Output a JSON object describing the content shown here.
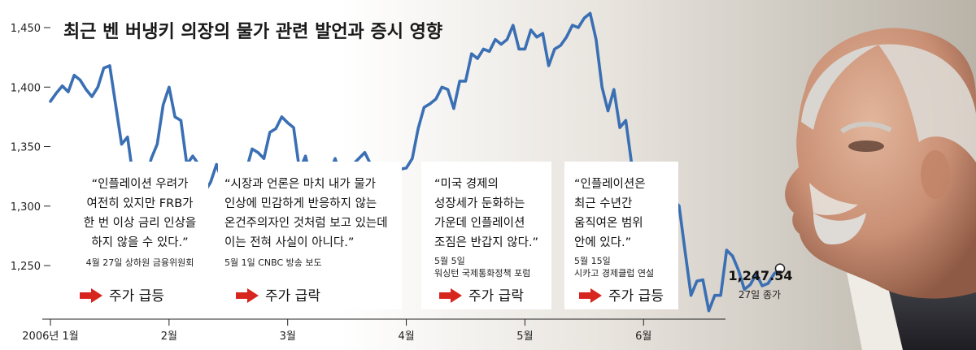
{
  "chart_data": {
    "type": "line",
    "title": "최근 벤 버냉키 의장의 물가 관련 발언과 증시 영향",
    "ylim": [
      1205,
      1465
    ],
    "yticks": [
      1250,
      1300,
      1350,
      1400,
      1450
    ],
    "ytick_labels": [
      "1,250",
      "1,300",
      "1,350",
      "1,400",
      "1,450"
    ],
    "xticks": [
      {
        "label": "2006년 1월",
        "index": 0
      },
      {
        "label": "2월",
        "index": 20
      },
      {
        "label": "3월",
        "index": 40
      },
      {
        "label": "4월",
        "index": 60
      },
      {
        "label": "5월",
        "index": 80
      },
      {
        "label": "6월",
        "index": 100
      }
    ],
    "series": [
      {
        "values": [
          1388,
          1395,
          1401,
          1396,
          1410,
          1406,
          1398,
          1392,
          1400,
          1416,
          1418,
          1385,
          1352,
          1358,
          1322,
          1300,
          1320,
          1340,
          1352,
          1385,
          1400,
          1375,
          1372,
          1335,
          1342,
          1335,
          1312,
          1320,
          1335,
          1320,
          1330,
          1305,
          1312,
          1330,
          1348,
          1345,
          1340,
          1362,
          1365,
          1375,
          1370,
          1366,
          1330,
          1342,
          1320,
          1316,
          1312,
          1326,
          1340,
          1325,
          1335,
          1335,
          1340,
          1345,
          1335,
          1310,
          1310,
          1320,
          1330,
          1331,
          1332,
          1340,
          1365,
          1383,
          1386,
          1390,
          1400,
          1398,
          1382,
          1405,
          1405,
          1428,
          1424,
          1432,
          1430,
          1440,
          1436,
          1440,
          1452,
          1432,
          1432,
          1448,
          1442,
          1445,
          1418,
          1432,
          1435,
          1442,
          1452,
          1450,
          1458,
          1462,
          1440,
          1400,
          1380,
          1398,
          1366,
          1372,
          1335,
          1325,
          1325,
          1300,
          1312,
          1305,
          1296,
          1306,
          1300,
          1262,
          1225,
          1237,
          1238,
          1212,
          1225,
          1225,
          1263,
          1258,
          1246,
          1230,
          1234,
          1243,
          1233,
          1235,
          1243,
          1247.54
        ]
      }
    ],
    "annotations": [
      {
        "quote": [
          "“인플레이션 우려가",
          "여전히 있지만 FRB가",
          "한 번 이상 금리 인상을",
          "하지 않을 수 있다.”"
        ],
        "source": [
          "4월 27일 상하원 금융위원회"
        ],
        "effect": "주가 급등"
      },
      {
        "quote": [
          "“시장과 언론은 마치 내가 물가",
          "인상에 민감하게 반응하지 않는",
          "온건주의자인 것처럼 보고 있는데",
          "이는 전혀 사실이 아니다.”"
        ],
        "source": [
          "5월 1일 CNBC 방송 보도"
        ],
        "effect": "주가 급락"
      },
      {
        "quote": [
          "“미국 경제의",
          "성장세가 둔화하는",
          "가운데 인플레이션",
          "조짐은 반갑지 않다.”"
        ],
        "source": [
          "5월 5일",
          "워싱턴 국제통화정책 포럼"
        ],
        "effect": "주가 급락"
      },
      {
        "quote": [
          "“인플레이션은",
          "최근 수년간",
          "움직여온 범위",
          "안에 있다.”"
        ],
        "source": [
          "5월 15일",
          "시카고 경제클럽 연설"
        ],
        "effect": "주가 급등"
      }
    ],
    "last_close": {
      "value": "1,247.54",
      "label": "27일 종가"
    },
    "colors": {
      "line": "#3a6fb4",
      "arrow": "#d7261e",
      "marker_fill": "#ffffff",
      "marker_stroke": "#222222",
      "background_right": "#b9b3a8"
    }
  }
}
